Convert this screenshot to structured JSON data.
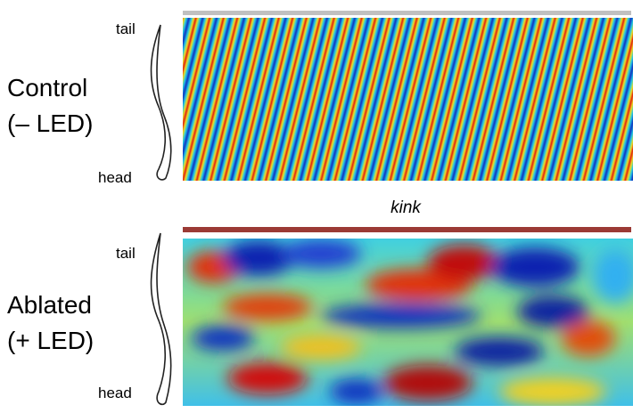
{
  "panels": [
    {
      "label": [
        "Control",
        "(– LED)"
      ],
      "tail": "tail",
      "head": "head"
    },
    {
      "label": [
        "Ablated",
        "(+ LED)"
      ],
      "tail": "tail",
      "head": "head"
    }
  ],
  "annotation": "kink"
}
